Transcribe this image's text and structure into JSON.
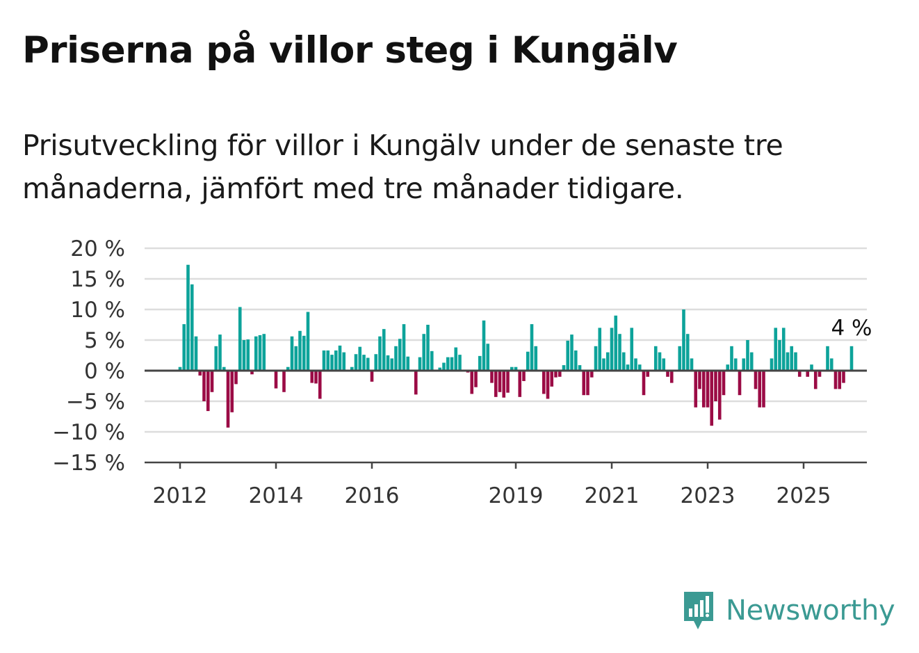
{
  "title": "Priserna på villor steg i Kungälv",
  "subtitle": "Prisutveckling för villor i Kungälv under de senaste tre månaderna, jämfört med tre månader tidigare.",
  "logo": {
    "text": "Newsworthy",
    "icon": "bar-chart-speech-bubble-icon",
    "color": "#3b9a93"
  },
  "colors": {
    "positive": "#0da39a",
    "negative": "#9b0b45",
    "grid": "#dddddd",
    "axis": "#444444"
  },
  "chart_data": {
    "type": "bar",
    "x_start": "2012-01",
    "x_step": "month",
    "x_tick_labels": [
      "2012",
      "2014",
      "2016",
      "2019",
      "2021",
      "2023",
      "2025"
    ],
    "y_tick_labels": [
      "20 %",
      "15 %",
      "10 %",
      "5 %",
      "0 %",
      "−5 %",
      "−10 %",
      "−15 %"
    ],
    "ylim": [
      -15,
      20
    ],
    "grid": true,
    "annotation": {
      "text": "4 %"
    },
    "values": [
      0.6,
      7.6,
      17.3,
      14.1,
      5.6,
      -0.8,
      -5.0,
      -6.6,
      -3.5,
      4.0,
      5.9,
      0.6,
      -9.3,
      -6.8,
      -2.2,
      10.4,
      5.0,
      5.1,
      -0.6,
      5.6,
      5.8,
      6.0,
      0,
      0,
      -2.9,
      0,
      -3.5,
      0.6,
      5.6,
      4.0,
      6.5,
      5.7,
      9.6,
      -2.0,
      -2.1,
      -4.6,
      3.3,
      3.3,
      2.6,
      3.3,
      4.1,
      3.0,
      0,
      0.6,
      2.7,
      3.9,
      2.6,
      2.1,
      -1.8,
      2.7,
      5.6,
      6.8,
      2.5,
      2.0,
      4.0,
      5.2,
      7.6,
      2.3,
      0,
      -3.9,
      2.2,
      6.0,
      7.5,
      3.2,
      0,
      0.5,
      1.3,
      2.2,
      2.2,
      3.8,
      2.6,
      0,
      -0.3,
      -3.8,
      -2.7,
      2.4,
      8.2,
      4.4,
      -2.0,
      -4.3,
      -3.5,
      -4.4,
      -3.6,
      0.6,
      0.6,
      -4.3,
      -1.7,
      3.1,
      7.6,
      4.0,
      0,
      -3.8,
      -4.6,
      -2.6,
      -1.1,
      -1.0,
      0.9,
      4.9,
      5.9,
      3.3,
      0.9,
      -4.0,
      -4.0,
      -1.1,
      4.0,
      7.0,
      2.0,
      3.0,
      7.0,
      9.0,
      6.0,
      3.0,
      1.0,
      7.0,
      2.0,
      1.0,
      -4.0,
      -1.0,
      0,
      4.0,
      3.0,
      2.0,
      -1.0,
      -2.0,
      0,
      4.0,
      10.0,
      6.0,
      2.0,
      -6.0,
      -3.0,
      -6.0,
      -6.0,
      -9.0,
      -5.0,
      -8.0,
      -4.0,
      1.0,
      4.0,
      2.0,
      -4.0,
      2.0,
      5.0,
      3.0,
      -3.0,
      -6.0,
      -6.0,
      0,
      2.0,
      7.0,
      5.0,
      7.0,
      3.0,
      4.0,
      3.0,
      -1.0,
      0,
      -1.0,
      1.0,
      -3.0,
      -1.0,
      0,
      4.0,
      2.0,
      -3.0,
      -3.0,
      -2.0,
      0,
      4.0
    ]
  }
}
